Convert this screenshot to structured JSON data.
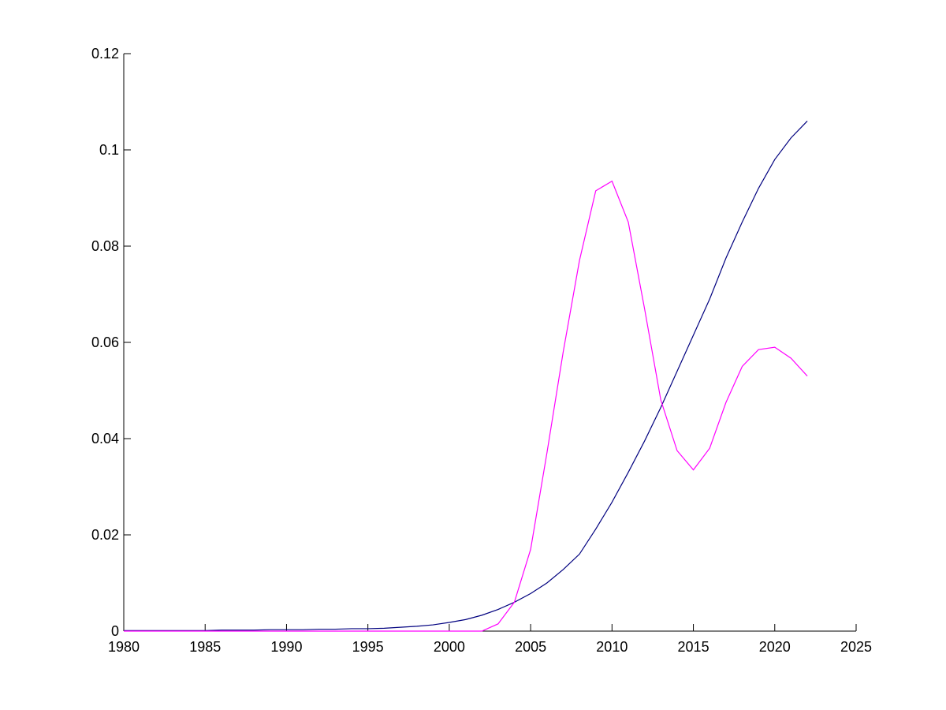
{
  "chart_data": {
    "type": "line",
    "x": [
      1980,
      1981,
      1982,
      1983,
      1984,
      1985,
      1986,
      1987,
      1988,
      1989,
      1990,
      1991,
      1992,
      1993,
      1994,
      1995,
      1996,
      1997,
      1998,
      1999,
      2000,
      2001,
      2002,
      2003,
      2004,
      2005,
      2006,
      2007,
      2008,
      2009,
      2010,
      2011,
      2012,
      2013,
      2014,
      2015,
      2016,
      2017,
      2018,
      2019,
      2020,
      2021,
      2022
    ],
    "series": [
      {
        "color": "#00007f",
        "values": [
          0.0001,
          0.0001,
          0.0001,
          0.0001,
          0.0001,
          0.0001,
          0.0002,
          0.0002,
          0.0002,
          0.0003,
          0.0003,
          0.0003,
          0.0004,
          0.0004,
          0.0005,
          0.0005,
          0.0006,
          0.0008,
          0.001,
          0.0013,
          0.0018,
          0.0024,
          0.0033,
          0.0045,
          0.006,
          0.0078,
          0.01,
          0.0128,
          0.016,
          0.0212,
          0.0268,
          0.033,
          0.0395,
          0.0465,
          0.054,
          0.0615,
          0.069,
          0.0775,
          0.085,
          0.092,
          0.098,
          0.1025,
          0.106
        ]
      },
      {
        "color": "#ff00ff",
        "values": [
          0,
          0,
          0,
          0,
          0,
          0,
          0,
          0,
          0,
          0,
          0,
          0,
          0,
          0,
          0,
          0,
          0,
          0,
          0,
          0,
          0,
          0,
          0,
          0.0015,
          0.006,
          0.017,
          0.037,
          0.058,
          0.077,
          0.0915,
          0.0935,
          0.085,
          0.067,
          0.048,
          0.0375,
          0.0335,
          0.038,
          0.0475,
          0.055,
          0.0585,
          0.059,
          0.0567,
          0.053
        ]
      }
    ],
    "xlim": [
      1980,
      2025
    ],
    "xticks": [
      1980,
      1985,
      1990,
      1995,
      2000,
      2005,
      2010,
      2015,
      2020,
      2025
    ],
    "ylim": [
      0,
      0.12
    ],
    "yticks": [
      0,
      0.02,
      0.04,
      0.06,
      0.08,
      0.1,
      0.12
    ]
  }
}
